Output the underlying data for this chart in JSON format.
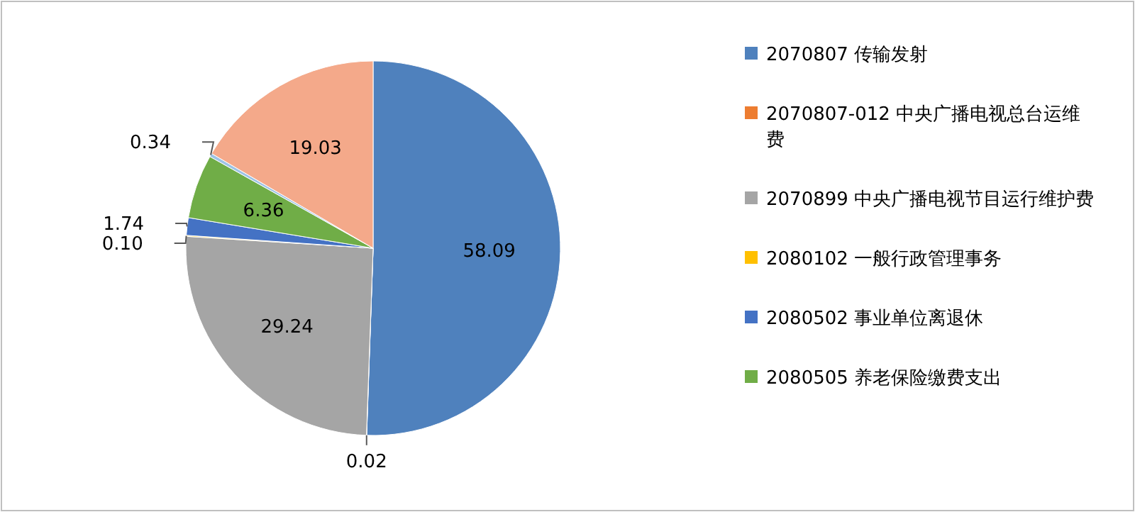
{
  "chart_data": {
    "type": "pie",
    "categories": [
      "2070807 传输发射",
      "2070807-012 中央广播电视总台运维费",
      "2070899 中央广播电视节目运行维护费",
      "2080102 一般行政管理事务",
      "2080502 事业单位离退休",
      "2080505 养老保险缴费支出",
      null,
      null
    ],
    "values": [
      58.09,
      0.02,
      29.24,
      0.1,
      1.74,
      6.36,
      0.34,
      19.03
    ],
    "colors": [
      "#4f81bd",
      "#ed7d31",
      "#a5a5a5",
      "#ffc000",
      "#4472c4",
      "#70ad47",
      "#9dc3e6",
      "#f4a98a"
    ],
    "value_labels": [
      "58.09",
      "0.02",
      "29.24",
      "0.10",
      "1.74",
      "6.36",
      "0.34",
      "19.03"
    ],
    "legend": "right"
  }
}
